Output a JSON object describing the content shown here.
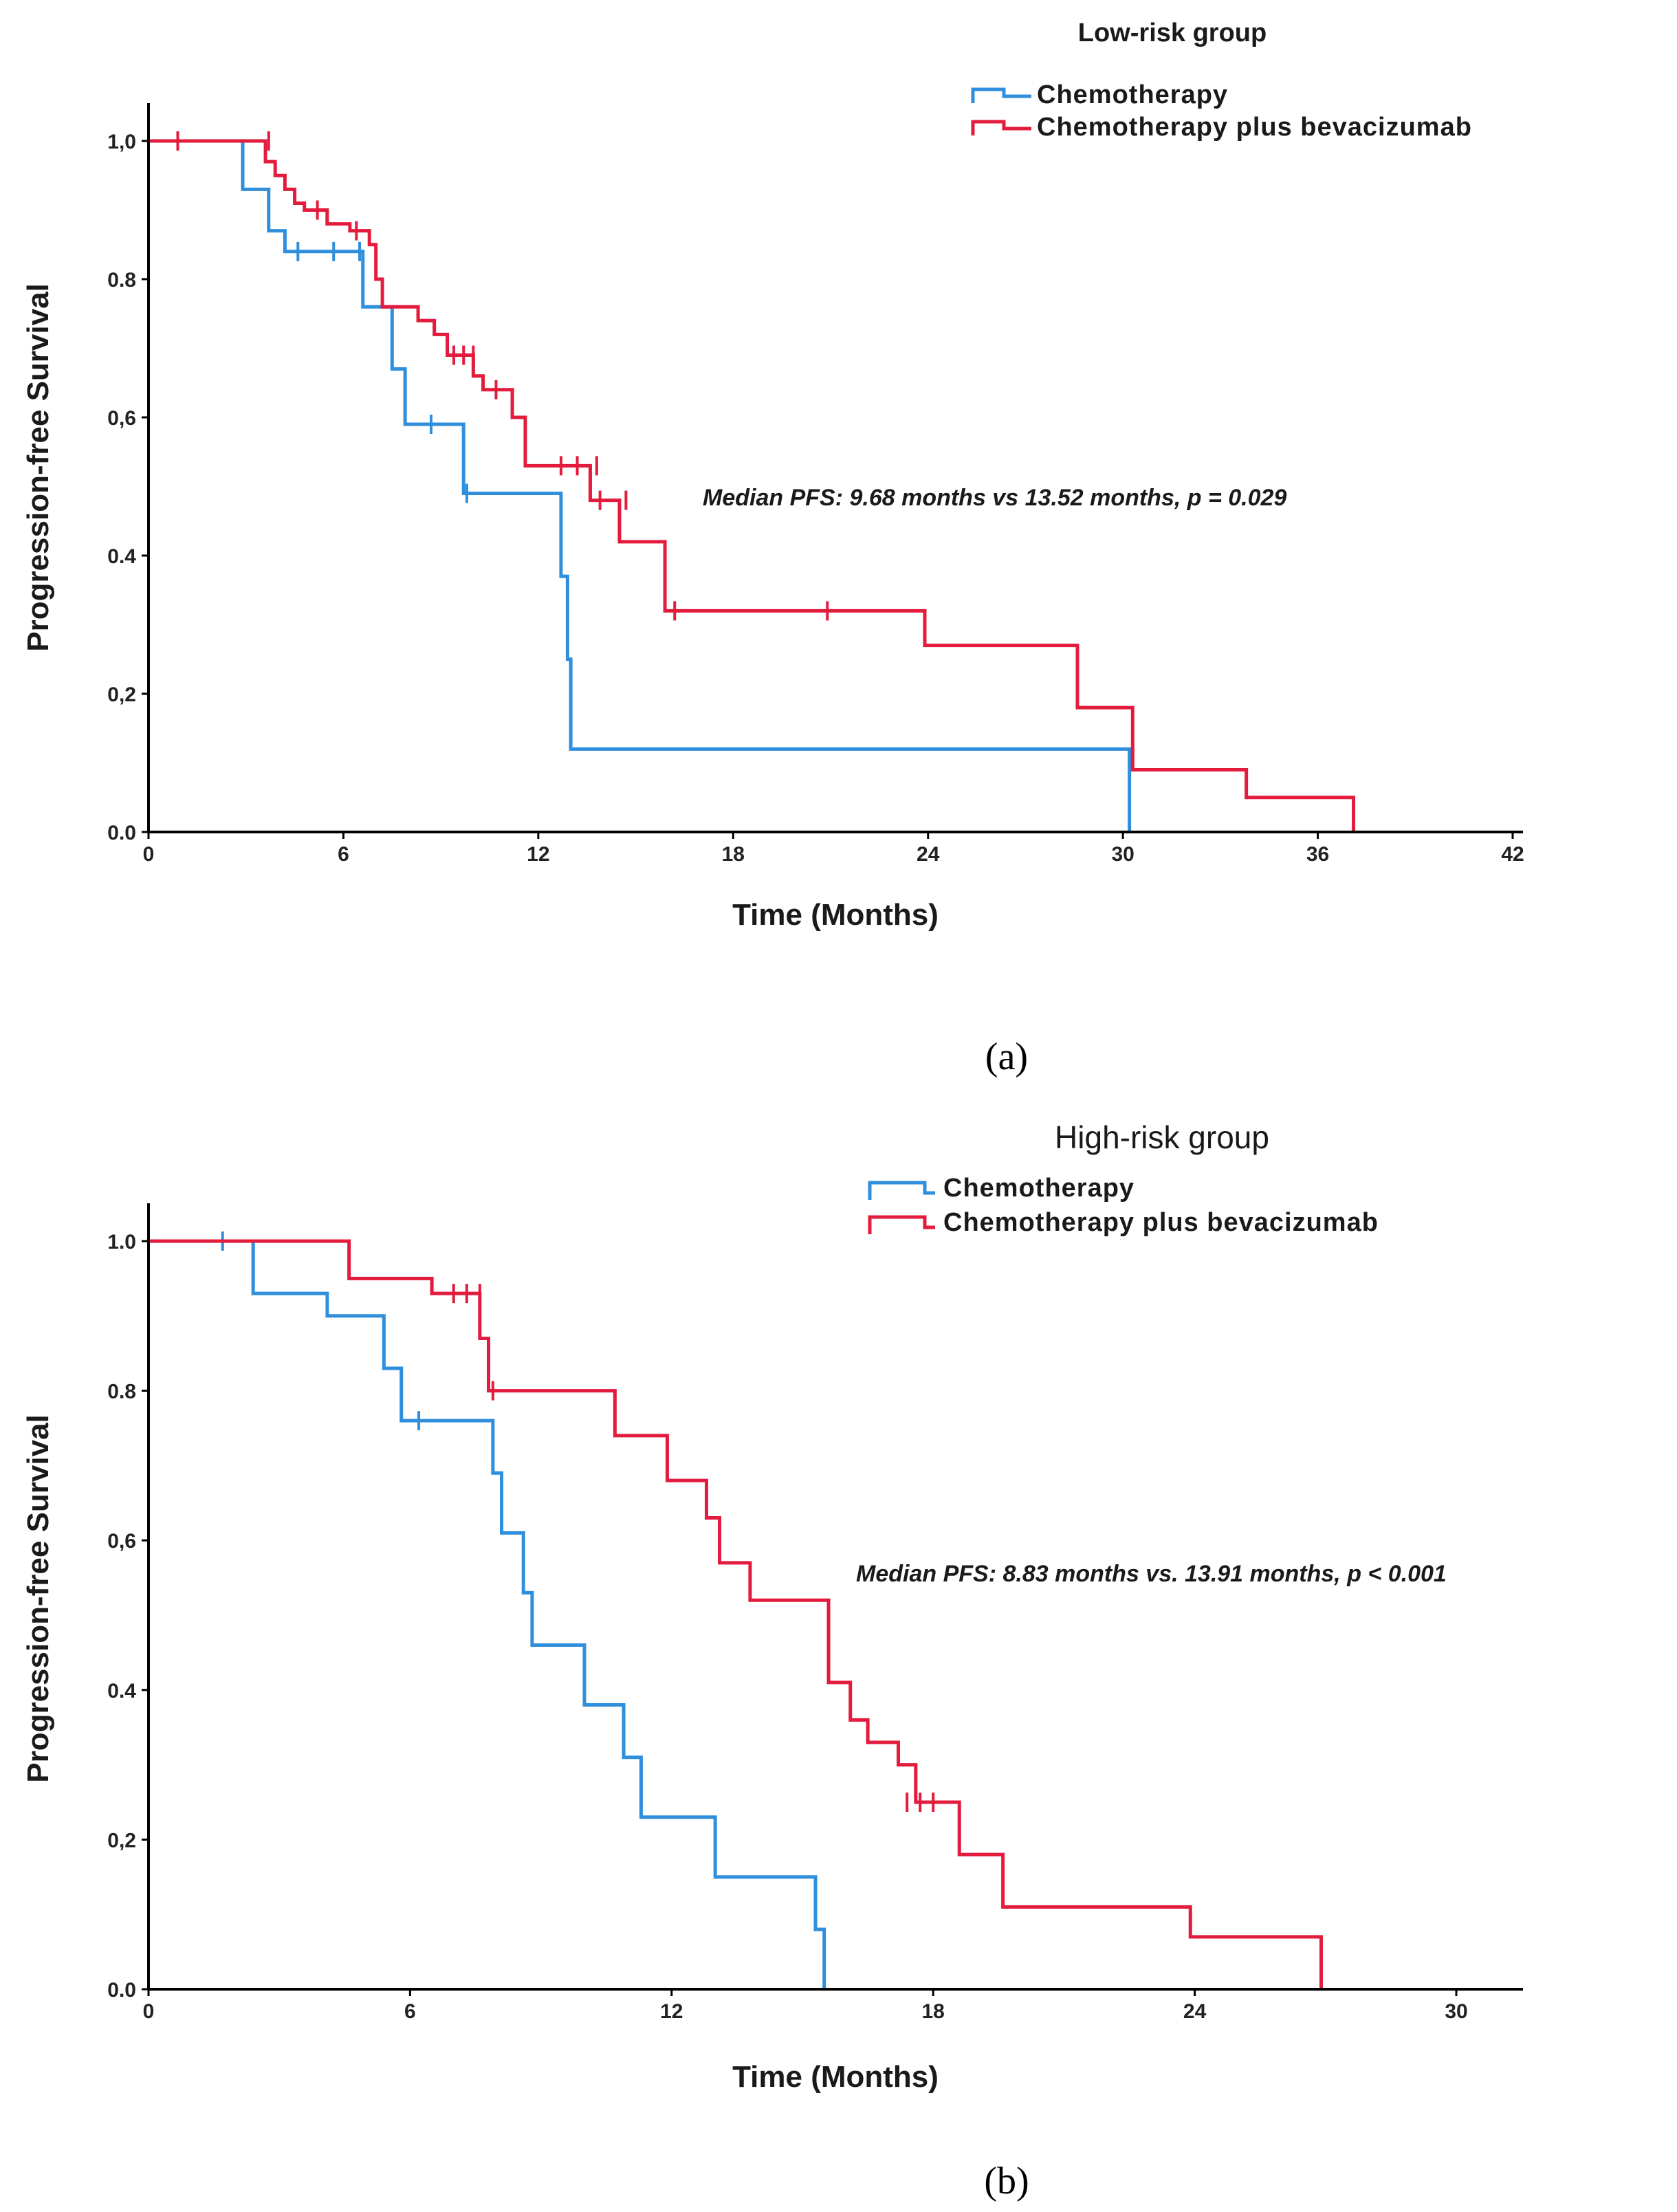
{
  "colors": {
    "chemo": "#2f8fdc",
    "bev": "#e31b3d"
  },
  "panels": [
    {
      "label": "(a)"
    },
    {
      "label": "(b)"
    }
  ],
  "chart_data": [
    {
      "type": "line",
      "title": "Low-risk group",
      "xlabel": "Time (Months)",
      "ylabel": "Progression-free Survival",
      "xlim": [
        0,
        42
      ],
      "ylim": [
        0,
        1
      ],
      "xticks": [
        0,
        6,
        12,
        18,
        24,
        30,
        36,
        42
      ],
      "xtick_labels": [
        "0",
        "6",
        "12",
        "18",
        "24",
        "30",
        "36",
        "42"
      ],
      "yticks": [
        0,
        0.2,
        0.4,
        0.6,
        0.8,
        1.0
      ],
      "ytick_labels": [
        "0.0",
        "0,2",
        "0.4",
        "0,6",
        "0.8",
        "1,0"
      ],
      "legend_placement": "top-right",
      "annotation": "Median PFS: 9.68 months vs 13.52 months,  p = 0.029",
      "series": [
        {
          "name": "Chemotherapy",
          "color": "chemo",
          "x": [
            0,
            2.9,
            3.7,
            4.2,
            6.6,
            7.5,
            7.9,
            8.3,
            9.7,
            12.7,
            12.9,
            13.0,
            30.2
          ],
          "y": [
            1.0,
            0.93,
            0.87,
            0.84,
            0.76,
            0.67,
            0.59,
            0.59,
            0.49,
            0.37,
            0.25,
            0.12,
            0.0
          ],
          "censored": [
            [
              4.6,
              0.84
            ],
            [
              5.7,
              0.84
            ],
            [
              6.5,
              0.84
            ],
            [
              8.7,
              0.59
            ],
            [
              9.8,
              0.49
            ]
          ]
        },
        {
          "name": "Chemotherapy plus bevacizumab",
          "color": "bev",
          "x": [
            0,
            3.6,
            3.9,
            4.2,
            4.5,
            4.8,
            5.5,
            6.2,
            6.8,
            7.0,
            7.2,
            8.3,
            8.8,
            9.2,
            10.0,
            10.3,
            11.2,
            11.6,
            13.6,
            14.5,
            15.9,
            23.9,
            28.6,
            30.3,
            33.8,
            37.1
          ],
          "y": [
            1.0,
            0.97,
            0.95,
            0.93,
            0.91,
            0.9,
            0.88,
            0.87,
            0.85,
            0.8,
            0.76,
            0.74,
            0.72,
            0.69,
            0.66,
            0.64,
            0.6,
            0.53,
            0.48,
            0.42,
            0.32,
            0.27,
            0.18,
            0.09,
            0.05,
            0.0
          ],
          "censored": [
            [
              0.9,
              1.0
            ],
            [
              3.7,
              1.0
            ],
            [
              5.2,
              0.9
            ],
            [
              6.4,
              0.87
            ],
            [
              9.4,
              0.69
            ],
            [
              9.7,
              0.69
            ],
            [
              10.0,
              0.69
            ],
            [
              10.7,
              0.64
            ],
            [
              12.7,
              0.53
            ],
            [
              13.2,
              0.53
            ],
            [
              13.8,
              0.53
            ],
            [
              13.9,
              0.48
            ],
            [
              14.7,
              0.48
            ],
            [
              16.2,
              0.32
            ],
            [
              20.9,
              0.32
            ]
          ]
        }
      ]
    },
    {
      "type": "line",
      "title": "High-risk group",
      "xlabel": "Time (Months)",
      "ylabel": "Progression-free Survival",
      "xlim": [
        0,
        31.5
      ],
      "ylim": [
        0,
        1
      ],
      "xticks": [
        0,
        6,
        12,
        18,
        24,
        30
      ],
      "xtick_labels": [
        "0",
        "6",
        "12",
        "18",
        "24",
        "30"
      ],
      "yticks": [
        0,
        0.2,
        0.4,
        0.6,
        0.8,
        1.0
      ],
      "ytick_labels": [
        "0.0",
        "0,2",
        "0.4",
        "0,6",
        "0.8",
        "1.0"
      ],
      "legend_placement": "top-right",
      "annotation": "Median PFS: 8.83 months vs. 13.91 months, p < 0.001",
      "series": [
        {
          "name": "Chemotherapy",
          "color": "chemo",
          "x": [
            0,
            2.4,
            4.1,
            5.4,
            5.8,
            7.9,
            8.1,
            8.6,
            8.8,
            10.0,
            10.9,
            11.3,
            13.0,
            15.3,
            15.5
          ],
          "y": [
            1.0,
            0.93,
            0.9,
            0.83,
            0.76,
            0.69,
            0.61,
            0.53,
            0.46,
            0.38,
            0.31,
            0.23,
            0.15,
            0.08,
            0.0
          ],
          "censored": [
            [
              1.7,
              1.0
            ],
            [
              6.2,
              0.76
            ]
          ]
        },
        {
          "name": "Chemotherapy plus bevacizumab",
          "color": "bev",
          "x": [
            0,
            4.6,
            6.5,
            7.6,
            7.8,
            10.7,
            11.9,
            12.8,
            13.1,
            13.8,
            15.6,
            16.1,
            16.5,
            17.2,
            17.6,
            18.6,
            19.6,
            23.9,
            26.9
          ],
          "y": [
            1.0,
            0.95,
            0.93,
            0.87,
            0.8,
            0.74,
            0.68,
            0.63,
            0.57,
            0.52,
            0.41,
            0.36,
            0.33,
            0.3,
            0.25,
            0.18,
            0.11,
            0.07,
            0.0
          ],
          "censored": [
            [
              7.0,
              0.93
            ],
            [
              7.3,
              0.93
            ],
            [
              7.6,
              0.93
            ],
            [
              7.9,
              0.8
            ],
            [
              17.4,
              0.25
            ],
            [
              17.7,
              0.25
            ],
            [
              18.0,
              0.25
            ]
          ]
        }
      ]
    }
  ]
}
